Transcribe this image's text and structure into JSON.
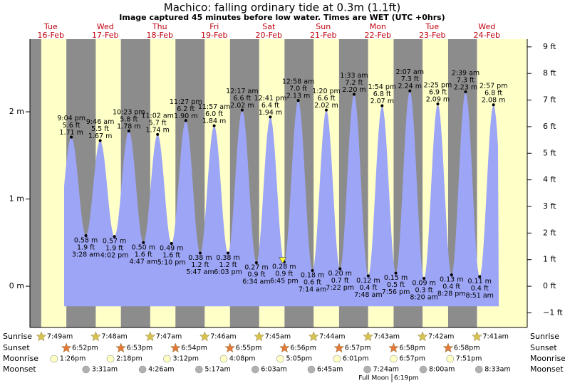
{
  "chart_data": {
    "type": "tide",
    "title": "Machico: falling  ordinary tide at 0.3m (1.1ft)",
    "subtitle": "Image captured 45 minutes before low water. Times are WET (UTC +0hrs)",
    "ylim": [
      -0.473,
      2.833
    ],
    "yticks": [
      {
        "value": 2,
        "label": "2 m"
      },
      {
        "value": 1,
        "label": "1 m"
      },
      {
        "value": 0,
        "label": "0 m"
      }
    ],
    "y2lim": [
      -1.55,
      9.29
    ],
    "y2ticks": [
      {
        "value": 9,
        "label": "9 ft"
      },
      {
        "value": 8,
        "label": "8 ft"
      },
      {
        "value": 7,
        "label": "7 ft"
      },
      {
        "value": 6,
        "label": "6 ft"
      },
      {
        "value": 5,
        "label": "5 ft"
      },
      {
        "value": 4,
        "label": "4 ft"
      },
      {
        "value": 3,
        "label": "3 ft"
      },
      {
        "value": 2,
        "label": "2 ft"
      },
      {
        "value": 1,
        "label": "1 ft"
      },
      {
        "value": 0,
        "label": "0 ft"
      },
      {
        "value": -1,
        "label": "−1 ft"
      }
    ],
    "tide_color": "#9da5f6",
    "day_color": "#ffffc8",
    "night_color": "#8c8c8c",
    "row_labels": {
      "sunrise": "Sunrise",
      "sunset": "Sunset",
      "moonrise": "Moonrise",
      "moonset": "Moonset"
    },
    "moon_phase": {
      "name": "Full Moon",
      "time": "6:19pm"
    },
    "days": [
      {
        "dow": "Tue",
        "date": "16-Feb",
        "sunrise": "7:49am",
        "sunset": "6:52pm",
        "moonrise": "1:26pm",
        "moonset": null,
        "tides": [
          {
            "time": "9:04 pm",
            "ft": "5.6 ft",
            "m": 1.71,
            "m_label": "1.71 m"
          }
        ]
      },
      {
        "dow": "Wed",
        "date": "17-Feb",
        "sunrise": "7:48am",
        "sunset": "6:53pm",
        "moonrise": "2:18pm",
        "moonset": "3:31am",
        "tides": [
          {
            "time": "3:28 am",
            "ft": "1.9 ft",
            "m": 0.58,
            "m_label": "0.58 m"
          },
          {
            "time": "9:46 am",
            "ft": "5.5 ft",
            "m": 1.67,
            "m_label": "1.67 m"
          },
          {
            "time": "4:02 pm",
            "ft": "1.9 ft",
            "m": 0.57,
            "m_label": "0.57 m"
          },
          {
            "time": "10:23 pm",
            "ft": "5.8 ft",
            "m": 1.78,
            "m_label": "1.78 m"
          }
        ]
      },
      {
        "dow": "Thu",
        "date": "18-Feb",
        "sunrise": "7:47am",
        "sunset": "6:54pm",
        "moonrise": "3:12pm",
        "moonset": "4:26am",
        "tides": [
          {
            "time": "4:47 am",
            "ft": "1.6 ft",
            "m": 0.5,
            "m_label": "0.50 m"
          },
          {
            "time": "11:02 am",
            "ft": "5.7 ft",
            "m": 1.74,
            "m_label": "1.74 m"
          },
          {
            "time": "5:10 pm",
            "ft": "1.6 ft",
            "m": 0.49,
            "m_label": "0.49 m"
          },
          {
            "time": "11:27 pm",
            "ft": "6.2 ft",
            "m": 1.9,
            "m_label": "1.90 m"
          }
        ]
      },
      {
        "dow": "Fri",
        "date": "19-Feb",
        "sunrise": "7:46am",
        "sunset": "6:55pm",
        "moonrise": "4:08pm",
        "moonset": "5:17am",
        "tides": [
          {
            "time": "5:47 am",
            "ft": "1.2 ft",
            "m": 0.38,
            "m_label": "0.38 m"
          },
          {
            "time": "11:57 am",
            "ft": "6.0 ft",
            "m": 1.84,
            "m_label": "1.84 m"
          },
          {
            "time": "6:03 pm",
            "ft": "1.2 ft",
            "m": 0.38,
            "m_label": "0.38 m"
          }
        ]
      },
      {
        "dow": "Sat",
        "date": "20-Feb",
        "sunrise": "7:45am",
        "sunset": "6:56pm",
        "moonrise": "5:05pm",
        "moonset": "6:03am",
        "tides": [
          {
            "time": "12:17 am",
            "ft": "6.6 ft",
            "m": 2.02,
            "m_label": "2.02 m"
          },
          {
            "time": "6:34 am",
            "ft": "0.9 ft",
            "m": 0.27,
            "m_label": "0.27 m"
          },
          {
            "time": "12:41 pm",
            "ft": "6.4 ft",
            "m": 1.94,
            "m_label": "1.94 m"
          },
          {
            "time": "6:45 pm",
            "ft": "0.9 ft",
            "m": 0.28,
            "m_label": "0.28 m"
          }
        ]
      },
      {
        "dow": "Sun",
        "date": "21-Feb",
        "sunrise": "7:44am",
        "sunset": "6:57pm",
        "moonrise": "6:01pm",
        "moonset": "6:45am",
        "tides": [
          {
            "time": "12:58 am",
            "ft": "7.0 ft",
            "m": 2.13,
            "m_label": "2.13 m"
          },
          {
            "time": "7:14 am",
            "ft": "0.6 ft",
            "m": 0.18,
            "m_label": "0.18 m"
          },
          {
            "time": "1:20 pm",
            "ft": "6.6 ft",
            "m": 2.02,
            "m_label": "2.02 m"
          },
          {
            "time": "7:22 pm",
            "ft": "0.7 ft",
            "m": 0.2,
            "m_label": "0.20 m"
          }
        ]
      },
      {
        "dow": "Mon",
        "date": "22-Feb",
        "sunrise": "7:43am",
        "sunset": "6:58pm",
        "moonrise": "6:57pm",
        "moonset": "7:24am",
        "tides": [
          {
            "time": "1:33 am",
            "ft": "7.2 ft",
            "m": 2.2,
            "m_label": "2.20 m"
          },
          {
            "time": "7:48 am",
            "ft": "0.4 ft",
            "m": 0.12,
            "m_label": "0.12 m"
          },
          {
            "time": "1:54 pm",
            "ft": "6.8 ft",
            "m": 2.07,
            "m_label": "2.07 m"
          },
          {
            "time": "7:56 pm",
            "ft": "0.5 ft",
            "m": 0.15,
            "m_label": "0.15 m"
          }
        ]
      },
      {
        "dow": "Tue",
        "date": "23-Feb",
        "sunrise": "7:42am",
        "sunset": "6:58pm",
        "moonrise": "7:51pm",
        "moonset": "8:00am",
        "tides": [
          {
            "time": "2:07 am",
            "ft": "7.3 ft",
            "m": 2.24,
            "m_label": "2.24 m"
          },
          {
            "time": "8:20 am",
            "ft": "0.3 ft",
            "m": 0.09,
            "m_label": "0.09 m"
          },
          {
            "time": "2:25 pm",
            "ft": "6.9 ft",
            "m": 2.09,
            "m_label": "2.09 m"
          },
          {
            "time": "8:28 pm",
            "ft": "0.4 ft",
            "m": 0.13,
            "m_label": "0.13 m"
          }
        ]
      },
      {
        "dow": "Wed",
        "date": "24-Feb",
        "sunrise": "7:41am",
        "sunset": null,
        "moonrise": null,
        "moonset": "8:33am",
        "tides": [
          {
            "time": "2:39 am",
            "ft": "7.3 ft",
            "m": 2.23,
            "m_label": "2.23 m"
          },
          {
            "time": "8:51 am",
            "ft": "0.4 ft",
            "m": 0.11,
            "m_label": "0.11 m"
          },
          {
            "time": "2:57 pm",
            "ft": "6.8 ft",
            "m": 2.08,
            "m_label": "2.08 m"
          }
        ]
      }
    ]
  }
}
